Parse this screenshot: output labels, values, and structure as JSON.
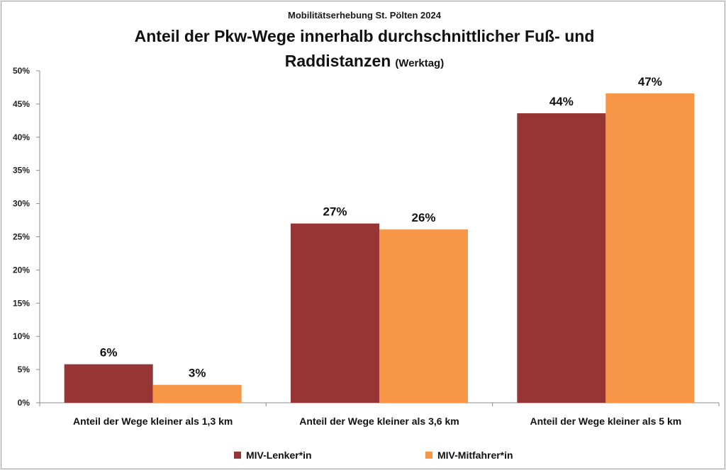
{
  "colors": {
    "series1": "#963634",
    "series2": "#f79646",
    "axis": "#8c8c8c"
  },
  "chart_data": {
    "type": "bar",
    "supertitle": "Mobilitätserhebung St. Pölten 2024",
    "title_line1": "Anteil der Pkw-Wege innerhalb durchschnittlicher Fuß- und",
    "title_line2": "Raddistanzen",
    "title_suffix": "(Werktag)",
    "categories": [
      "Anteil der Wege kleiner als 1,3 km",
      "Anteil der Wege kleiner als 3,6 km",
      "Anteil der Wege kleiner als 5 km"
    ],
    "series": [
      {
        "name": "MIV-Lenker*in",
        "values": [
          5.8,
          27.0,
          43.6
        ],
        "labels": [
          "6%",
          "27%",
          "44%"
        ]
      },
      {
        "name": "MIV-Mitfahrer*in",
        "values": [
          2.7,
          26.1,
          46.6
        ],
        "labels": [
          "3%",
          "26%",
          "47%"
        ]
      }
    ],
    "ylim": [
      0,
      50
    ],
    "yticks": [
      "0%",
      "5%",
      "10%",
      "15%",
      "20%",
      "25%",
      "30%",
      "35%",
      "40%",
      "45%",
      "50%"
    ],
    "xlabel": "",
    "ylabel": "",
    "grid": false,
    "legend": "bottom"
  }
}
